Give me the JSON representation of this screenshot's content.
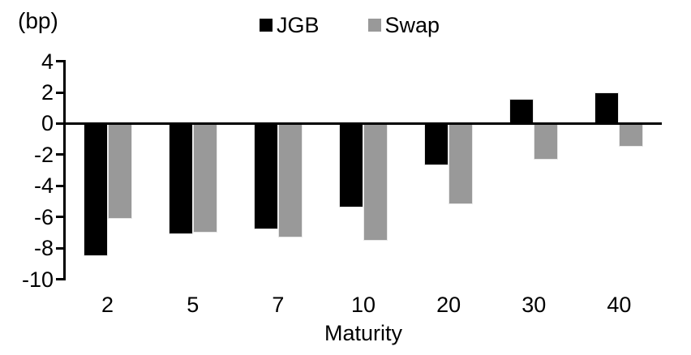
{
  "chart_data": {
    "type": "bar",
    "title": "",
    "unit_label": "(bp)",
    "xlabel": "Maturity",
    "categories": [
      "2",
      "5",
      "7",
      "10",
      "20",
      "30",
      "40"
    ],
    "series": [
      {
        "name": "JGB",
        "color": "#000000",
        "values": [
          -8.5,
          -7.1,
          -6.8,
          -5.4,
          -2.7,
          1.6,
          2.0
        ]
      },
      {
        "name": "Swap",
        "color": "#999999",
        "values": [
          -6.1,
          -7.0,
          -7.3,
          -7.5,
          -5.2,
          -2.3,
          -1.5
        ]
      }
    ],
    "ylim": [
      -10,
      4
    ],
    "yticks": [
      4,
      2,
      0,
      -2,
      -4,
      -6,
      -8,
      -10
    ],
    "ytick_interval": 2,
    "legend_position": "top-center",
    "grid": false,
    "background_color": "#ffffff",
    "axis_color": "#000000"
  }
}
